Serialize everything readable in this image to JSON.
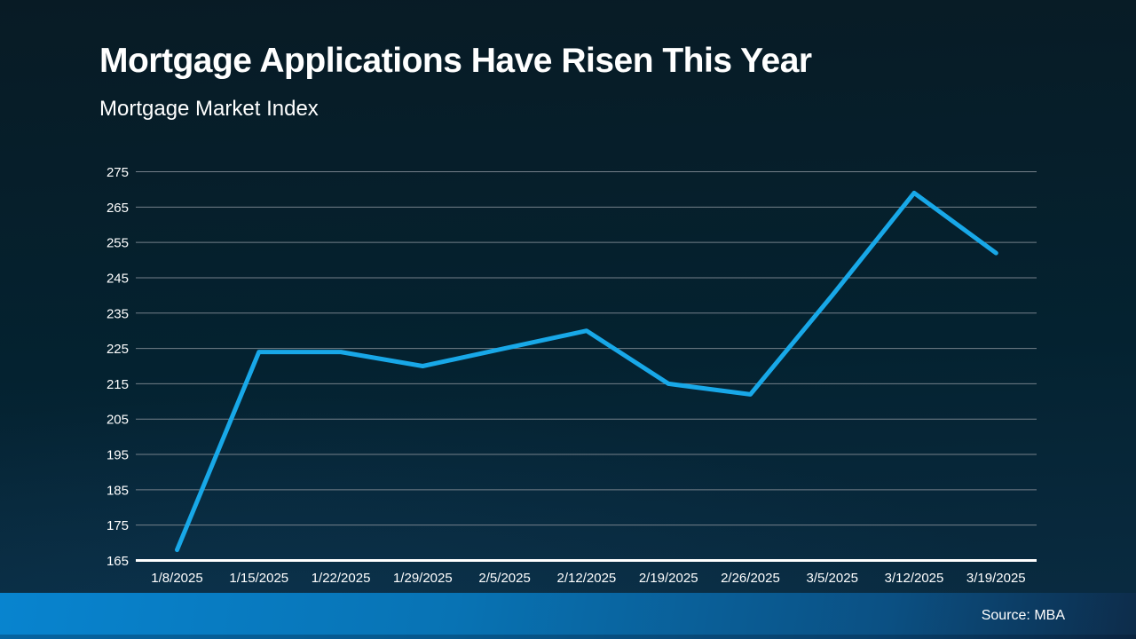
{
  "header": {
    "title": "Mortgage Applications Have Risen This Year",
    "subtitle": "Mortgage Market Index"
  },
  "footer": {
    "source": "Source: MBA"
  },
  "chart_data": {
    "type": "line",
    "title": "Mortgage Applications Have Risen This Year",
    "subtitle": "Mortgage Market Index",
    "categories": [
      "1/8/2025",
      "1/15/2025",
      "1/22/2025",
      "1/29/2025",
      "2/5/2025",
      "2/12/2025",
      "2/19/2025",
      "2/26/2025",
      "3/5/2025",
      "3/12/2025",
      "3/19/2025"
    ],
    "series": [
      {
        "name": "Mortgage Market Index",
        "values": [
          168,
          224,
          224,
          220,
          225,
          230,
          215,
          212,
          240,
          269,
          252
        ]
      }
    ],
    "xlabel": "",
    "ylabel": "",
    "ylim": [
      165,
      275
    ],
    "ytick_step": 10,
    "grid": true,
    "legend_position": "none",
    "line_color": "#18A8E8",
    "grid_color": "#75808A",
    "axis_color": "#FFFFFF",
    "label_color": "#FFFFFF",
    "background_color": "#07202E"
  }
}
